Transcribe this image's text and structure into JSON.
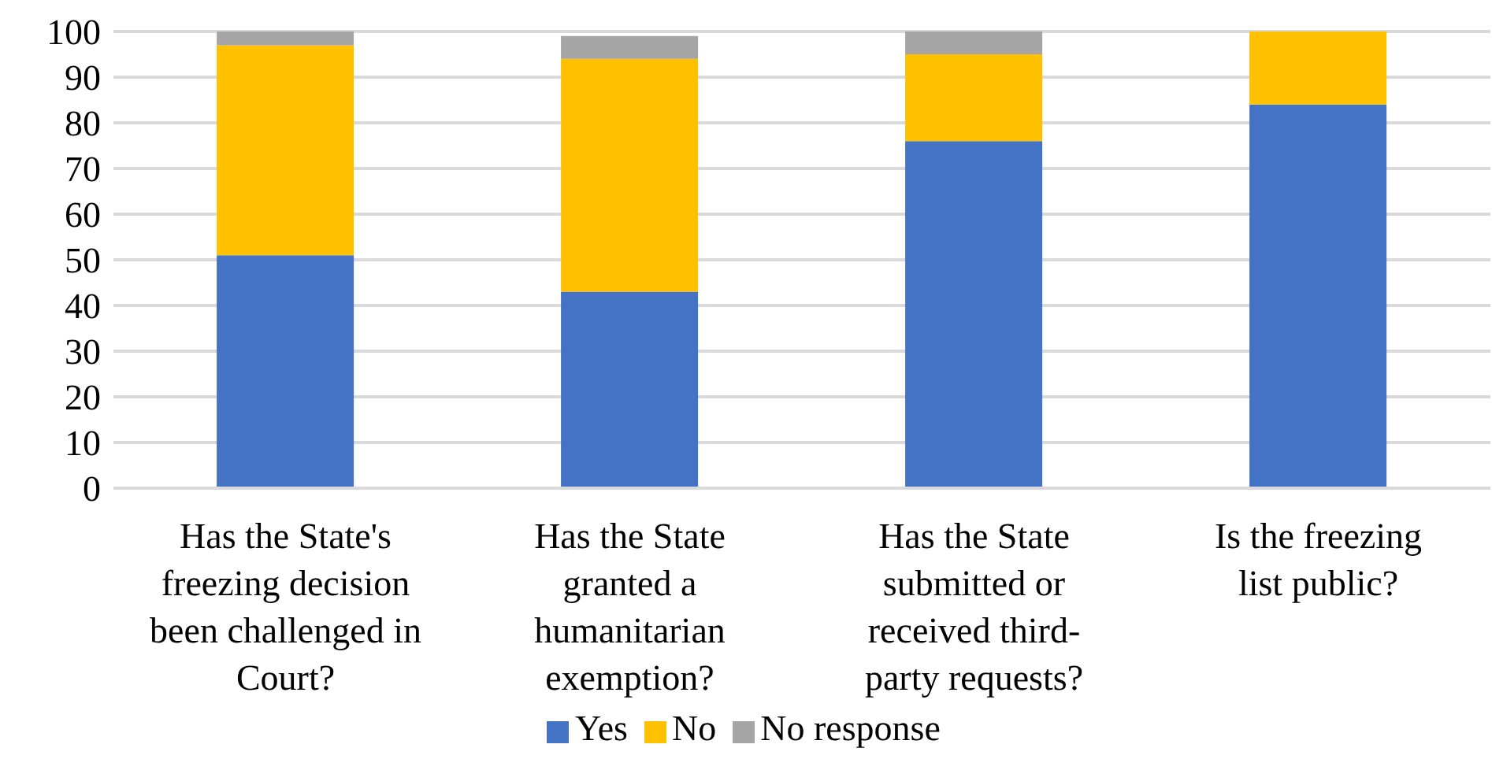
{
  "chart_data": {
    "type": "bar",
    "stacked": true,
    "categories": [
      "Has the State's freezing decision been challenged in Court?",
      "Has the State granted a humanitarian exemption?",
      "Has the State submitted or received third-party requests?",
      "Is the freezing list public?"
    ],
    "series": [
      {
        "name": "Yes",
        "color": "#4472c4",
        "values": [
          51,
          43,
          76,
          84
        ]
      },
      {
        "name": "No",
        "color": "#ffc000",
        "values": [
          46,
          51,
          19,
          16
        ]
      },
      {
        "name": "No response",
        "color": "#a5a5a5",
        "values": [
          3,
          5,
          5,
          0
        ]
      }
    ],
    "ylim": [
      0,
      100
    ],
    "yticks": [
      0,
      10,
      20,
      30,
      40,
      50,
      60,
      70,
      80,
      90,
      100
    ],
    "grid": "y",
    "legend": "bottom"
  }
}
